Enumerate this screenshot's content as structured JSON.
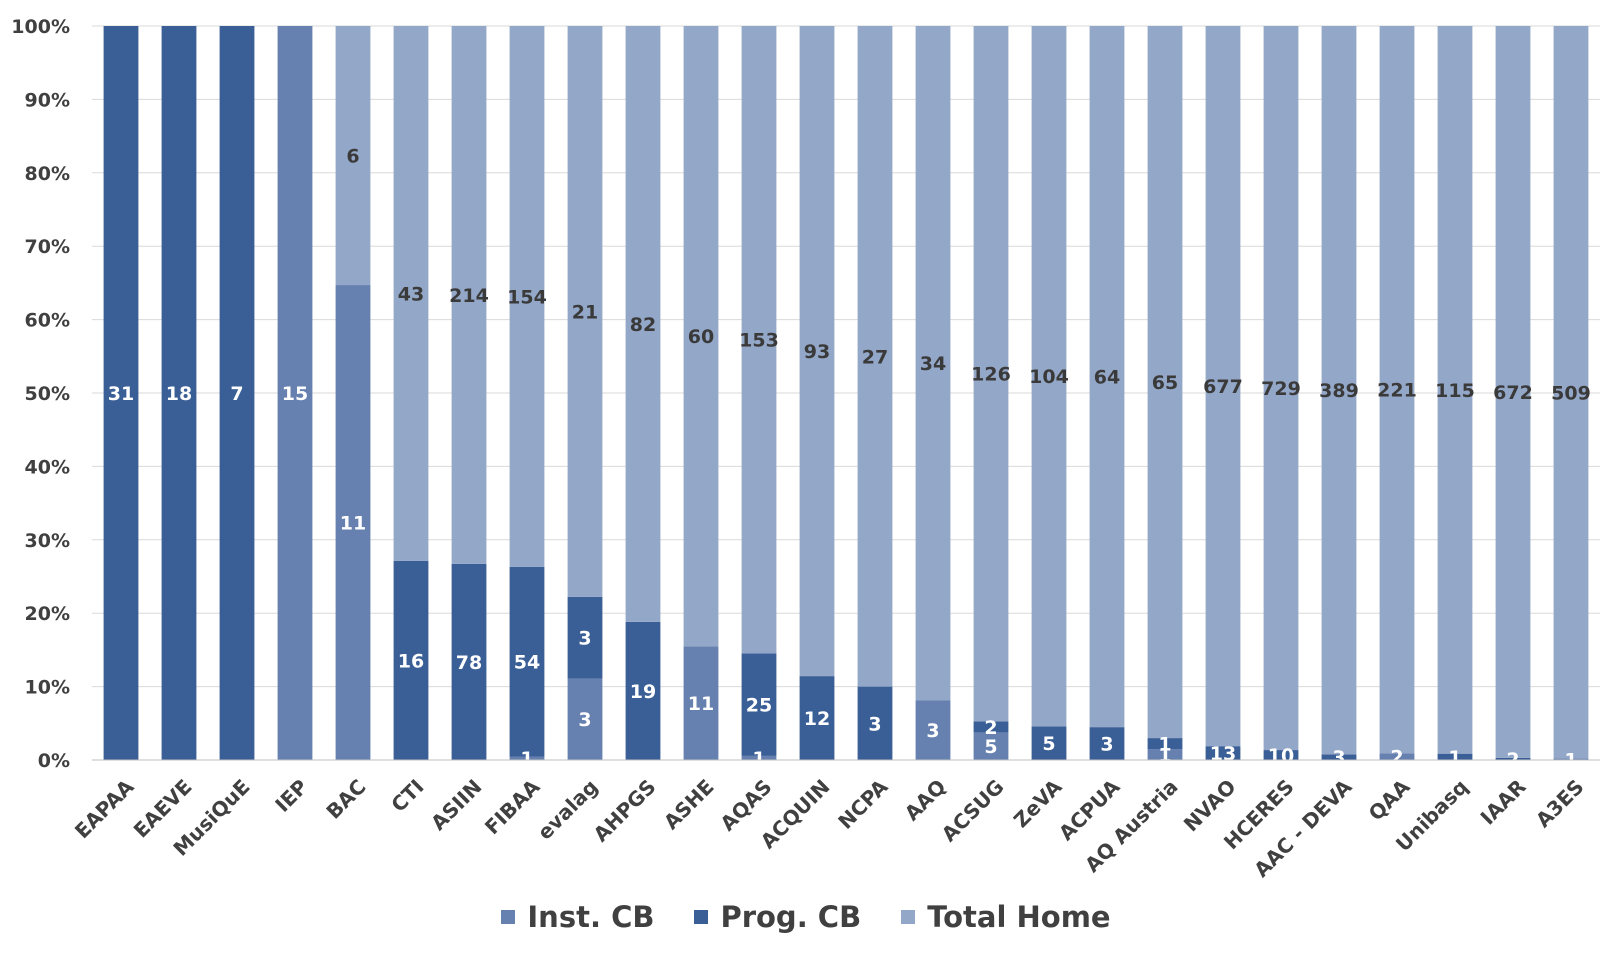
{
  "chart_data": {
    "type": "bar",
    "stacked": "percent",
    "categories": [
      "EAPAA",
      "EAEVE",
      "MusiQuE",
      "IEP",
      "BAC",
      "CTI",
      "ASIIN",
      "FIBAA",
      "evalag",
      "AHPGS",
      "ASHE",
      "AQAS",
      "ACQUIN",
      "NCPA",
      "AAQ",
      "ACSUG",
      "ZeVA",
      "ACPUA",
      "AQ Austria",
      "NVAO",
      "HCERES",
      "AAC - DEVA",
      "QAA",
      "Unibasq",
      "IAAR",
      "A3ES"
    ],
    "series": [
      {
        "name": "Inst. CB",
        "color": "#6680b0",
        "values": [
          0,
          0,
          0,
          15,
          11,
          0,
          0,
          1,
          3,
          0,
          11,
          1,
          0,
          0,
          3,
          5,
          0,
          0,
          1,
          0,
          0,
          0,
          2,
          0,
          0,
          1
        ]
      },
      {
        "name": "Prog. CB",
        "color": "#3a5e96",
        "values": [
          31,
          18,
          7,
          0,
          0,
          16,
          78,
          54,
          3,
          19,
          0,
          25,
          12,
          3,
          0,
          2,
          5,
          3,
          1,
          13,
          10,
          3,
          0,
          1,
          2,
          0
        ]
      },
      {
        "name": "Total Home",
        "color": "#93a7c8",
        "values": [
          0,
          0,
          0,
          0,
          6,
          43,
          214,
          154,
          21,
          82,
          60,
          153,
          93,
          27,
          34,
          126,
          104,
          64,
          65,
          677,
          729,
          389,
          221,
          115,
          672,
          509
        ]
      }
    ],
    "ylim": [
      0,
      100
    ],
    "ytick_labels": [
      "0%",
      "10%",
      "20%",
      "30%",
      "40%",
      "50%",
      "60%",
      "70%",
      "80%",
      "90%",
      "100%"
    ],
    "grid": true,
    "legend_position": "bottom",
    "title": "",
    "xlabel": "",
    "ylabel": ""
  }
}
